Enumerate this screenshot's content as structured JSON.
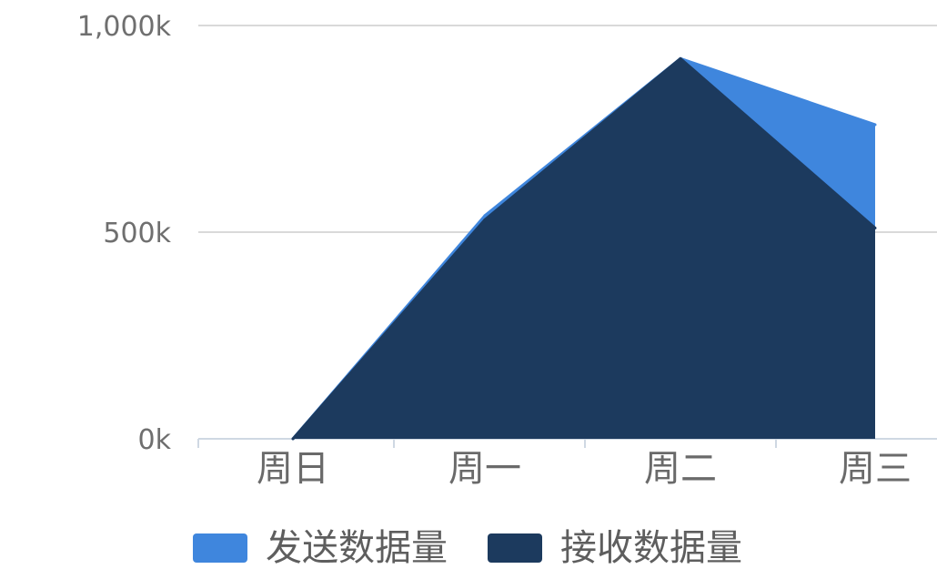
{
  "chart_data": {
    "type": "area",
    "stacked": false,
    "categories": [
      "周日",
      "周一",
      "周二",
      "周三"
    ],
    "series": [
      {
        "name": "发送数据量",
        "values": [
          0,
          540,
          920,
          760
        ],
        "color": "#3f86dd"
      },
      {
        "name": "接收数据量",
        "values": [
          0,
          530,
          920,
          510
        ],
        "color": "#1c3a5e"
      }
    ],
    "yticks": [
      {
        "value": 0,
        "label": "0k"
      },
      {
        "value": 500,
        "label": "500k"
      },
      {
        "value": 1000,
        "label": "1,000k"
      }
    ],
    "ylim": [
      0,
      1000
    ],
    "grid": true,
    "legend_position": "bottom"
  }
}
